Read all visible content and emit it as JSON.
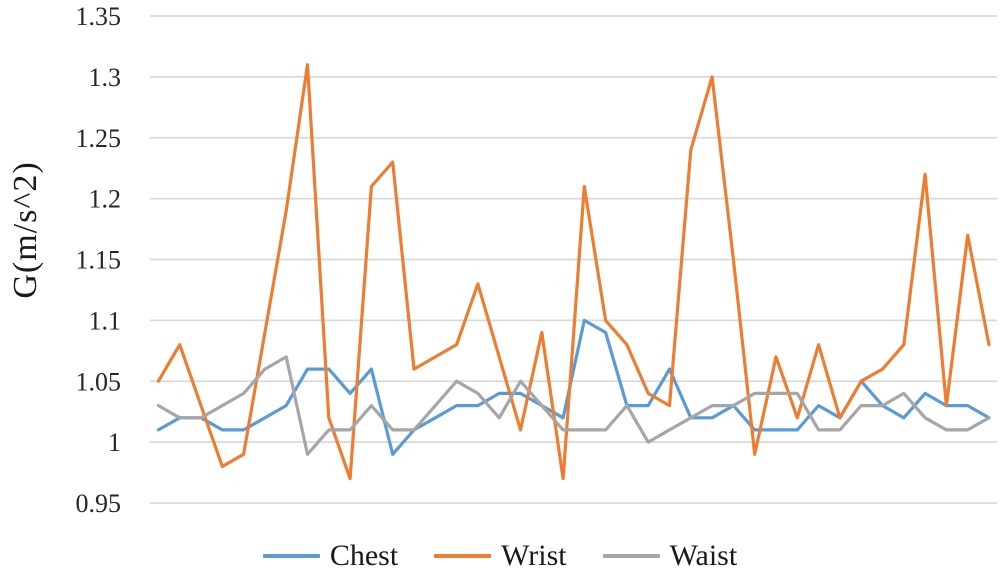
{
  "chart_data": {
    "type": "line",
    "title": "",
    "xlabel": "",
    "ylabel": "G(m/s^2)",
    "ylim": [
      0.95,
      1.35
    ],
    "yticks": [
      1.35,
      1.3,
      1.25,
      1.2,
      1.15,
      1.1,
      1.05,
      1,
      0.95
    ],
    "ytick_labels": [
      "1.35",
      "1.3",
      "1.25",
      "1.2",
      "1.15",
      "1.1",
      "1.05",
      "1",
      "0.95"
    ],
    "x_axis_labels_visible": false,
    "n_points": 40,
    "grid": "horizontal",
    "legend_position": "bottom",
    "series": [
      {
        "name": "Chest",
        "color": "#5B9BD5",
        "values": [
          1.01,
          1.02,
          1.02,
          1.01,
          1.01,
          1.02,
          1.03,
          1.06,
          1.06,
          1.04,
          1.06,
          0.99,
          1.01,
          1.02,
          1.03,
          1.03,
          1.04,
          1.04,
          1.03,
          1.02,
          1.1,
          1.09,
          1.03,
          1.03,
          1.06,
          1.02,
          1.02,
          1.03,
          1.01,
          1.01,
          1.01,
          1.03,
          1.02,
          1.05,
          1.03,
          1.02,
          1.04,
          1.03,
          1.03,
          1.02
        ]
      },
      {
        "name": "Wrist",
        "color": "#ED7D31",
        "values": [
          1.05,
          1.08,
          1.03,
          0.98,
          0.99,
          1.09,
          1.19,
          1.31,
          1.02,
          0.97,
          1.21,
          1.23,
          1.06,
          1.07,
          1.08,
          1.13,
          1.07,
          1.01,
          1.09,
          0.97,
          1.21,
          1.1,
          1.08,
          1.04,
          1.03,
          1.24,
          1.3,
          1.15,
          0.99,
          1.07,
          1.02,
          1.08,
          1.02,
          1.05,
          1.06,
          1.08,
          1.22,
          1.03,
          1.17,
          1.08
        ]
      },
      {
        "name": "Waist",
        "color": "#A6A6A6",
        "values": [
          1.03,
          1.02,
          1.02,
          1.03,
          1.04,
          1.06,
          1.07,
          0.99,
          1.01,
          1.01,
          1.03,
          1.01,
          1.01,
          1.03,
          1.05,
          1.04,
          1.02,
          1.05,
          1.03,
          1.01,
          1.01,
          1.01,
          1.03,
          1.0,
          1.01,
          1.02,
          1.03,
          1.03,
          1.04,
          1.04,
          1.04,
          1.01,
          1.01,
          1.03,
          1.03,
          1.04,
          1.02,
          1.01,
          1.01,
          1.02
        ]
      }
    ],
    "colors": {
      "gridline": "#D9D9D9",
      "axis_text": "#262626",
      "background": "#FFFFFF"
    }
  }
}
